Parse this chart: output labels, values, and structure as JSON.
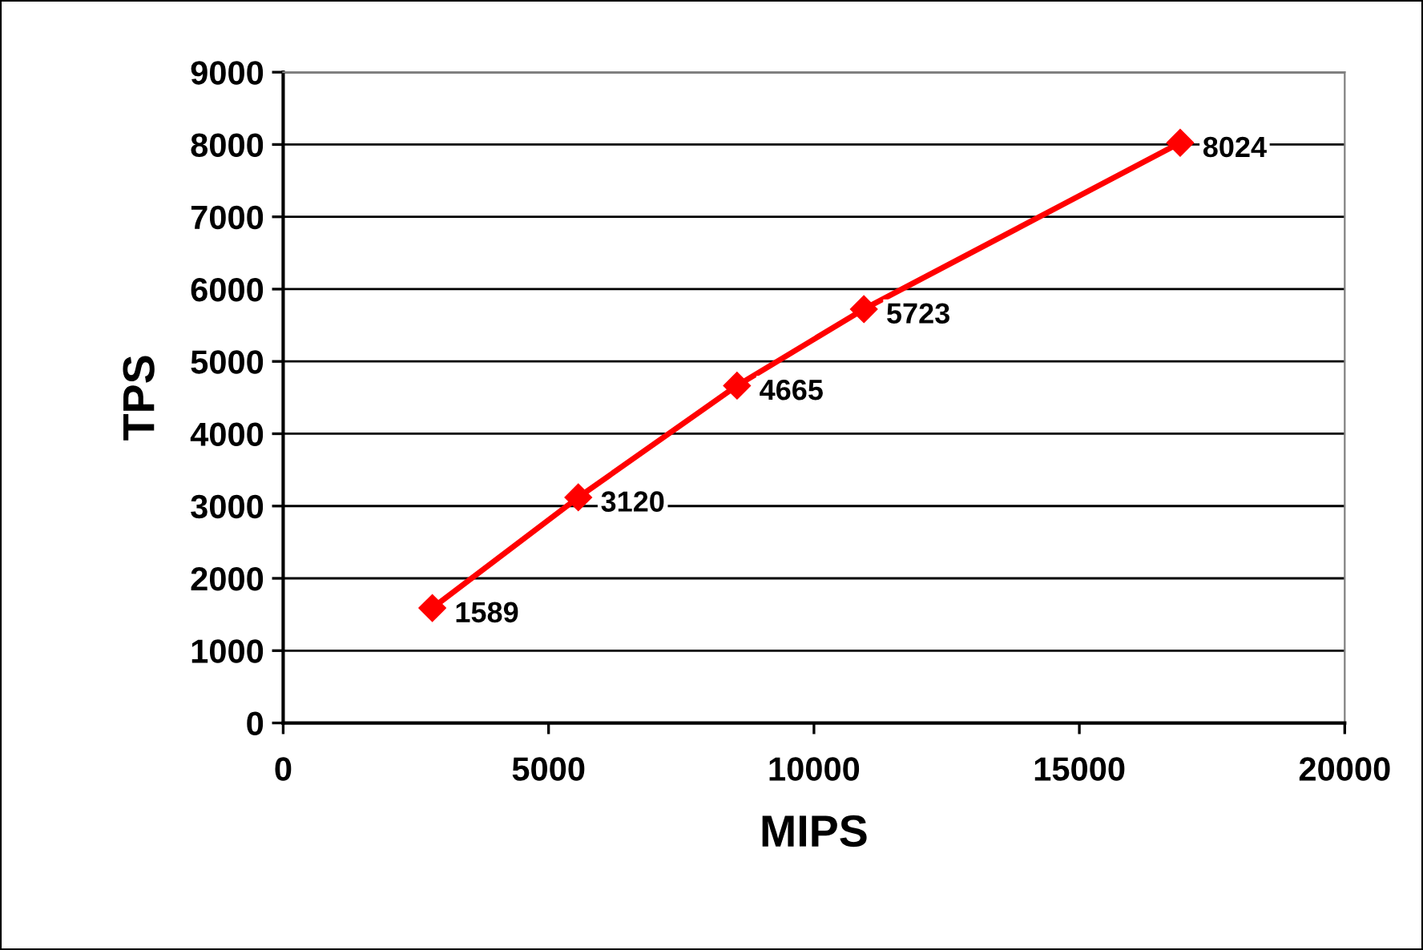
{
  "chart_data": {
    "type": "line",
    "xlabel": "MIPS",
    "ylabel": "TPS",
    "x": [
      2810,
      5560,
      8550,
      10940,
      16900
    ],
    "series": [
      {
        "color": "#ff0000",
        "values": [
          1589,
          3120,
          4665,
          5723,
          8024
        ]
      }
    ],
    "xlim": [
      0,
      20000
    ],
    "xticks": [
      0,
      5000,
      10000,
      15000,
      20000
    ],
    "ylim": [
      0,
      9000
    ],
    "yticks": [
      0,
      1000,
      2000,
      3000,
      4000,
      5000,
      6000,
      7000,
      8000,
      9000
    ],
    "grid": "y",
    "marker": "diamond",
    "line_style": "solid",
    "data_labels": true,
    "legend": false
  }
}
